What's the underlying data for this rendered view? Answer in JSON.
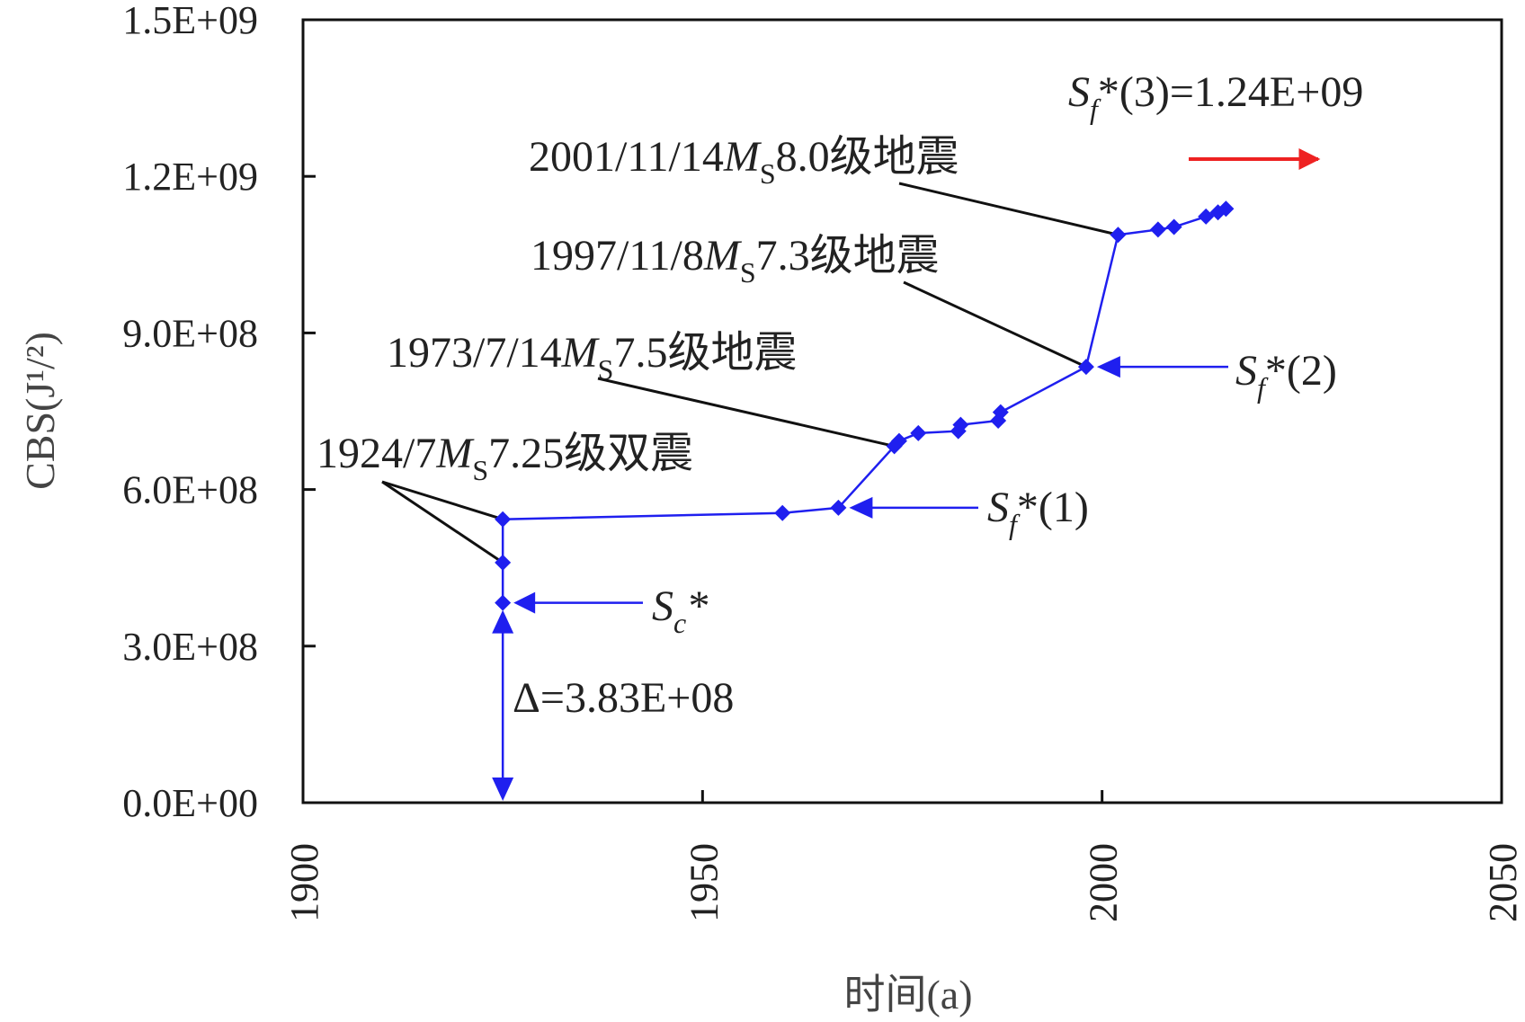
{
  "chart_data": {
    "type": "line",
    "xlabel": "时间(a)",
    "ylabel": "CBS(J¹/²)",
    "xlim": [
      1900,
      2050
    ],
    "ylim": [
      0,
      1500000000
    ],
    "x_ticks": [
      1900,
      1950,
      2000,
      2050
    ],
    "y_ticks": [
      0,
      300000000,
      600000000,
      900000000,
      1200000000,
      1500000000
    ],
    "y_tick_labels": [
      "0.0E+00",
      "3.0E+08",
      "6.0E+08",
      "9.0E+08",
      "1.2E+09",
      "1.5E+09"
    ],
    "grid": false,
    "series": [
      {
        "color": "#1f1fef",
        "marker": "diamond",
        "points": [
          [
            1925,
            460000000
          ],
          [
            1925,
            543000000
          ],
          [
            1960,
            555000000
          ],
          [
            1967,
            565000000
          ],
          [
            1974,
            683000000
          ],
          [
            1974.6,
            693000000
          ],
          [
            1977,
            708000000
          ],
          [
            1982,
            712000000
          ],
          [
            1982.3,
            724000000
          ],
          [
            1987,
            732000000
          ],
          [
            1987.3,
            748000000
          ],
          [
            1998,
            835000000
          ],
          [
            2002,
            1088000000
          ],
          [
            2007,
            1098000000
          ],
          [
            2009,
            1103000000
          ],
          [
            2013,
            1123000000
          ],
          [
            2014.5,
            1131000000
          ],
          [
            2015.5,
            1138000000
          ]
        ]
      }
    ],
    "annotations": {
      "sc": {
        "symbol": "S",
        "sub": "c",
        "tail": "*",
        "value": 383000000
      },
      "sf1": {
        "symbol": "S",
        "sub": "f",
        "tail": "*(1)",
        "value": 565000000
      },
      "sf2": {
        "symbol": "S",
        "sub": "f",
        "tail": "*(2)",
        "value": 835000000
      },
      "sf3": {
        "symbol": "S",
        "sub": "f",
        "tail": "*(3)=1.24E+09",
        "value": 1240000000
      },
      "delta": {
        "text": "Δ=3.83E+08",
        "value": 383000000
      },
      "quake_1924": {
        "pre": "1924/7",
        "ms": "M",
        "ms_sub": "S",
        "post": "7.25级双震"
      },
      "quake_1973": {
        "pre": "1973/7/14",
        "ms": "M",
        "ms_sub": "S",
        "post": "7.5级地震"
      },
      "quake_1997": {
        "pre": "1997/11/8",
        "ms": "M",
        "ms_sub": "S",
        "post": "7.3级地震"
      },
      "quake_2001": {
        "pre": "2001/11/14",
        "ms": "M",
        "ms_sub": "S",
        "post": "8.0级地震"
      }
    },
    "colors": {
      "series": "#1f1fef",
      "future_arrow": "#ee2222",
      "axis": "#111111"
    }
  }
}
